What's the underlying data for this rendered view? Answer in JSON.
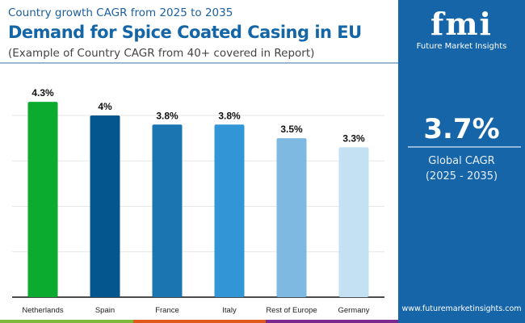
{
  "header": {
    "subtitle": "Country growth CAGR from 2025 to 2035",
    "title": "Demand for Spice Coated Casing in EU",
    "note": "(Example of Country CAGR from 40+ covered in Report)"
  },
  "panel": {
    "logo_text": "fmi",
    "logo_name": "Future Market Insights",
    "value": "3.7%",
    "label1": "Global CAGR",
    "label2": "(2025 - 2035)",
    "website": "www.futuremarketinsights.com",
    "color": "#1565a8"
  },
  "chart_data": {
    "type": "bar",
    "categories": [
      "Netherlands",
      "Spain",
      "France",
      "Italy",
      "Rest of Europe",
      "Germany"
    ],
    "values": [
      4.3,
      4.0,
      3.8,
      3.8,
      3.5,
      3.3
    ],
    "labels": [
      "4.3%",
      "4%",
      "3.8%",
      "3.8%",
      "3.5%",
      "3.3%"
    ],
    "colors": [
      "#0aab2f",
      "#03578e",
      "#1b75b0",
      "#3295d6",
      "#7db9e0",
      "#c3e1f2"
    ],
    "ylim": [
      0,
      4.4
    ],
    "grid": true,
    "gridlines": [
      1,
      2,
      3,
      4
    ]
  },
  "footer_colors": [
    "#7cba3b",
    "#e05a1c",
    "#7a2a8e"
  ]
}
